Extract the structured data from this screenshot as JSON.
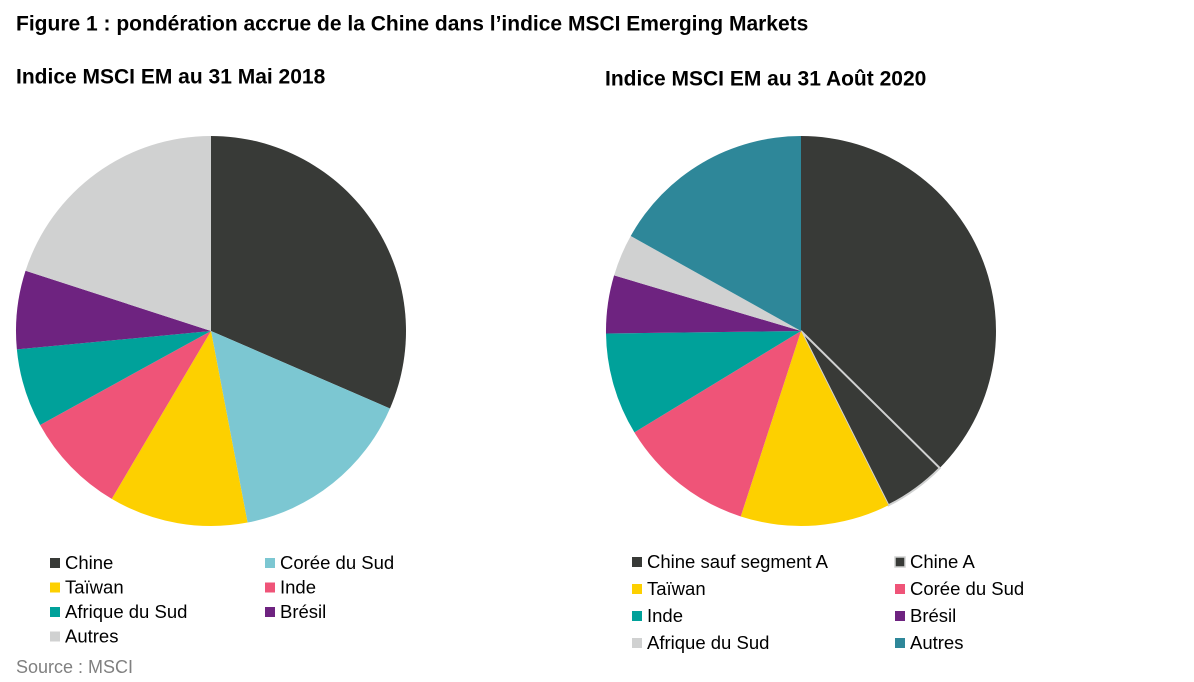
{
  "title": "Figure 1 : pondération accrue de la Chine dans l’indice MSCI Emerging Markets",
  "source": "Source : MSCI",
  "chart_data": [
    {
      "type": "pie",
      "title": "Indice MSCI EM au 31 Mai 2018",
      "categories": [
        "Chine",
        "Corée du Sud",
        "Taïwan",
        "Inde",
        "Afrique du Sud",
        "Brésil",
        "Autres"
      ],
      "values": [
        31.5,
        15.5,
        11.5,
        8.5,
        6.5,
        6.5,
        20.0
      ],
      "colors": [
        "#383a37",
        "#7cc7d2",
        "#fdd000",
        "#ef5478",
        "#00a19a",
        "#6e2380",
        "#d0d1d1"
      ]
    },
    {
      "type": "pie",
      "title": "Indice MSCI EM au 31 Août 2020",
      "categories": [
        "Chine sauf segment A",
        "Chine A",
        "Taïwan",
        "Corée du Sud",
        "Inde",
        "Brésil",
        "Afrique du Sud",
        "Autres"
      ],
      "values": [
        37.4,
        5.2,
        12.4,
        11.3,
        8.5,
        4.8,
        3.5,
        16.9
      ],
      "colors": [
        "#383a37",
        "#383a37",
        "#fdd000",
        "#ef5478",
        "#00a19a",
        "#6e2380",
        "#d0d1d1",
        "#2e8799"
      ]
    }
  ]
}
